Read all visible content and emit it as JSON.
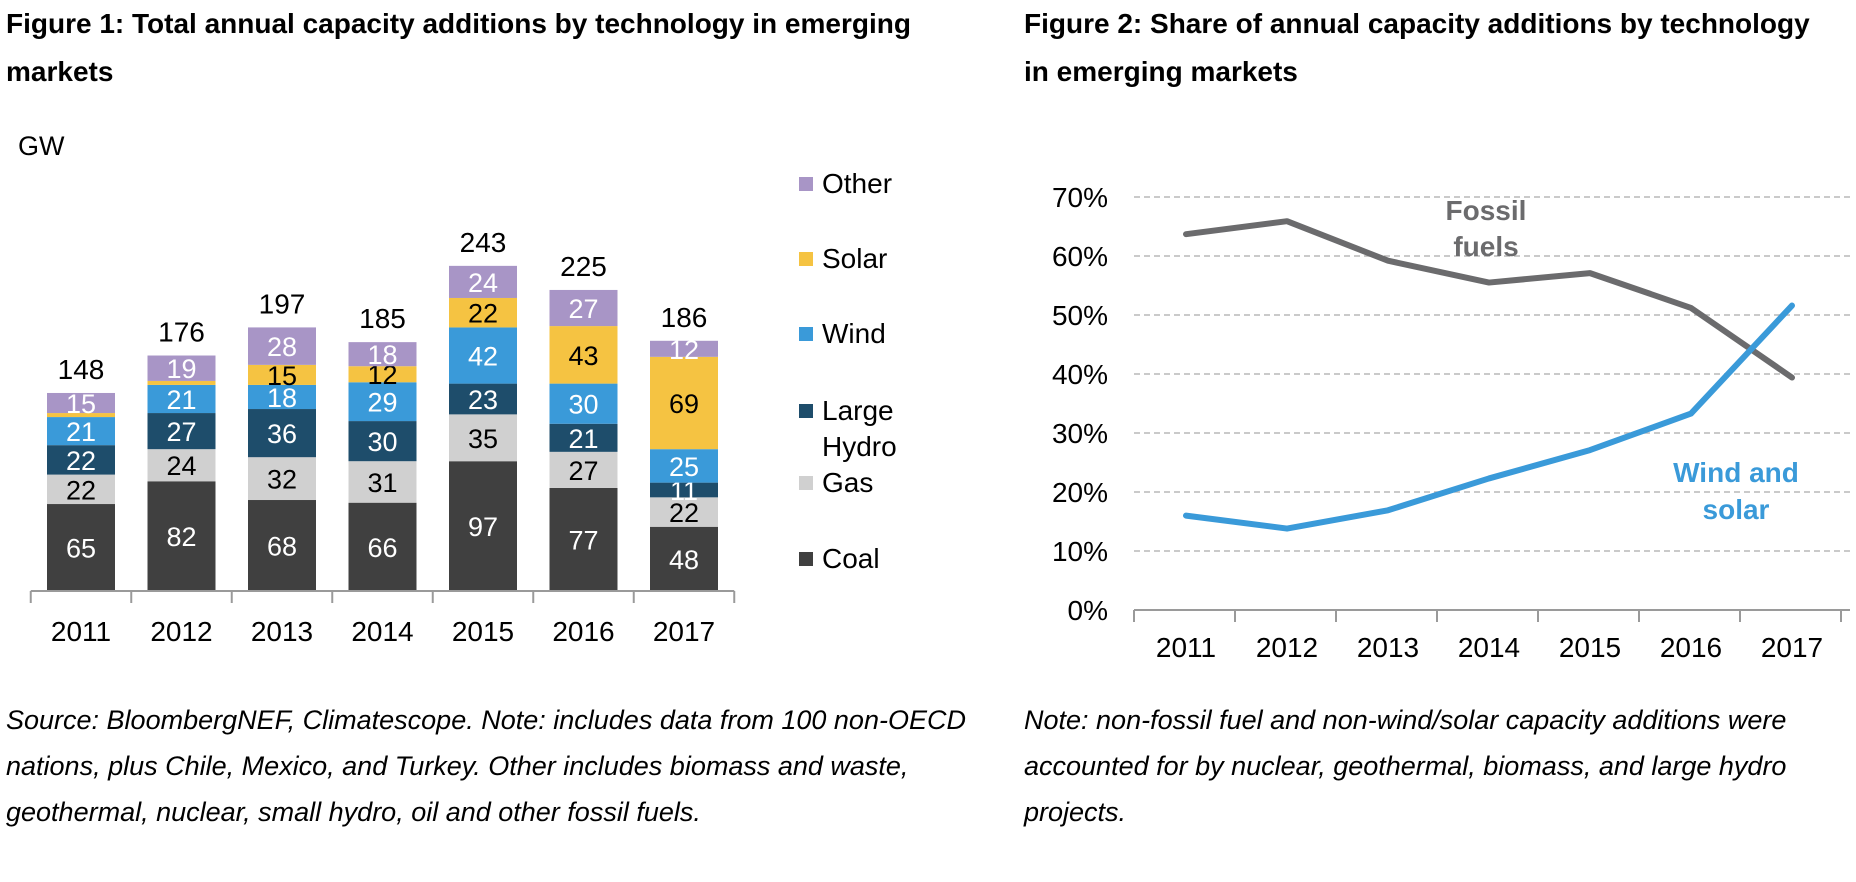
{
  "figure1": {
    "title": "Figure 1:  Total annual capacity additions by technology in emerging markets",
    "note": "Source: BloombergNEF, Climatescope. Note: includes data from 100 non-OECD nations, plus Chile, Mexico, and Turkey. Other includes biomass and waste, geothermal, nuclear, small hydro, oil and other fossil fuels."
  },
  "figure2": {
    "title": "Figure 2:  Share of annual  capacity additions by technology in emerging markets",
    "note": "Note: non-fossil fuel and non-wind/solar capacity additions were accounted for by nuclear, geothermal, biomass, and large hydro projects."
  },
  "colors": {
    "Coal": "#404040",
    "Gas": "#d0d0d0",
    "Large Hydro": "#1e4d6b",
    "Wind": "#3a9ad9",
    "Solar": "#f5c342",
    "Other": "#a895c6",
    "fossil_line": "#6b6b6d",
    "windsolar_line": "#3a9ad9"
  },
  "chart_data": [
    {
      "type": "bar",
      "stacked": true,
      "ylabel": "GW",
      "ylim": [
        0,
        250
      ],
      "categories": [
        "2011",
        "2012",
        "2013",
        "2014",
        "2015",
        "2016",
        "2017"
      ],
      "series": [
        {
          "name": "Coal",
          "values": [
            65,
            82,
            68,
            66,
            97,
            77,
            48
          ]
        },
        {
          "name": "Gas",
          "values": [
            22,
            24,
            32,
            31,
            35,
            27,
            22
          ]
        },
        {
          "name": "Large Hydro",
          "values": [
            22,
            27,
            36,
            30,
            23,
            21,
            11
          ]
        },
        {
          "name": "Wind",
          "values": [
            21,
            21,
            18,
            29,
            42,
            30,
            25
          ]
        },
        {
          "name": "Solar",
          "values": [
            3,
            3,
            15,
            12,
            22,
            43,
            69
          ]
        },
        {
          "name": "Other",
          "values": [
            15,
            19,
            28,
            18,
            24,
            27,
            12
          ]
        }
      ],
      "segment_labels": [
        [
          "65",
          "22",
          "22",
          "21",
          "",
          "15"
        ],
        [
          "82",
          "24",
          "27",
          "21",
          "",
          "19"
        ],
        [
          "68",
          "32",
          "36",
          "18",
          "15",
          "28"
        ],
        [
          "66",
          "31",
          "30",
          "29",
          "12",
          "18"
        ],
        [
          "97",
          "35",
          "23",
          "42",
          "22",
          "24"
        ],
        [
          "77",
          "27",
          "21",
          "30",
          "43",
          "27"
        ],
        [
          "48",
          "22",
          "11",
          "25",
          "69",
          "12"
        ]
      ],
      "totals": [
        "148",
        "176",
        "197",
        "185",
        "243",
        "225",
        "186"
      ],
      "legend": {
        "placement": "right",
        "entries": [
          {
            "series": "Other",
            "label": "Other"
          },
          {
            "series": "Solar",
            "label": "Solar"
          },
          {
            "series": "Wind",
            "label": "Wind"
          },
          {
            "series": "Large Hydro",
            "label": "Large Hydro"
          },
          {
            "series": "Gas",
            "label": "Gas"
          },
          {
            "series": "Coal",
            "label": "Coal"
          }
        ]
      },
      "grid": false
    },
    {
      "type": "line",
      "x": [
        "2011",
        "2012",
        "2013",
        "2014",
        "2015",
        "2016",
        "2017"
      ],
      "ylim": [
        0,
        0.7
      ],
      "yticks": [
        "0%",
        "10%",
        "20%",
        "30%",
        "40%",
        "50%",
        "60%",
        "70%"
      ],
      "grid": true,
      "series": [
        {
          "name": "Fossil fuels",
          "values": [
            0.637,
            0.659,
            0.592,
            0.555,
            0.571,
            0.512,
            0.394
          ]
        },
        {
          "name": "Wind and solar",
          "values": [
            0.16,
            0.138,
            0.169,
            0.223,
            0.271,
            0.333,
            0.516
          ]
        }
      ],
      "annotations": [
        {
          "series": "Fossil fuels",
          "text": "Fossil fuels"
        },
        {
          "series": "Wind and solar",
          "text": "Wind and solar"
        }
      ]
    }
  ]
}
